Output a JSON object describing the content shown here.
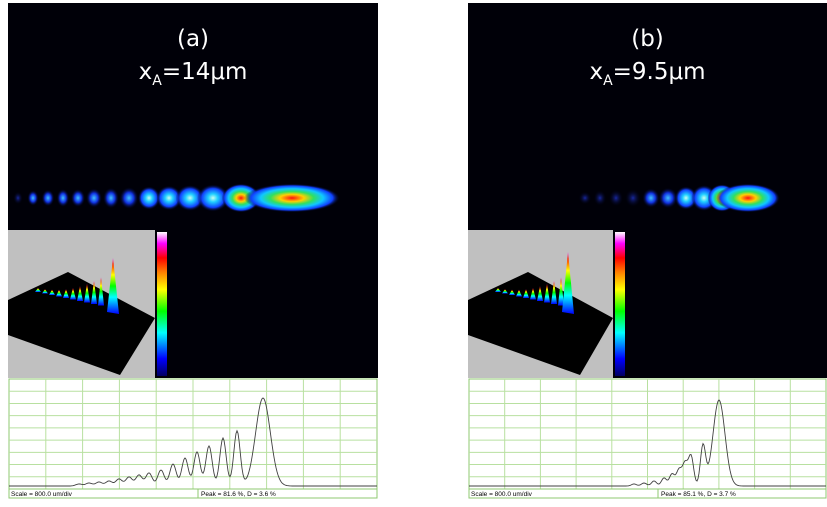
{
  "panels": [
    {
      "label": "(a)",
      "variable": "x",
      "subscript": "A",
      "value_text": "=14μm",
      "scale_text": "Scale = 800.0 um/div",
      "stats_text": "Peak = 81.6 %, D = 3.6 %"
    },
    {
      "label": "(b)",
      "variable": "x",
      "subscript": "A",
      "value_text": "=9.5μm",
      "scale_text": "Scale = 800.0 um/div",
      "stats_text": "Peak = 85.1 %, D = 3.7 %"
    }
  ]
}
